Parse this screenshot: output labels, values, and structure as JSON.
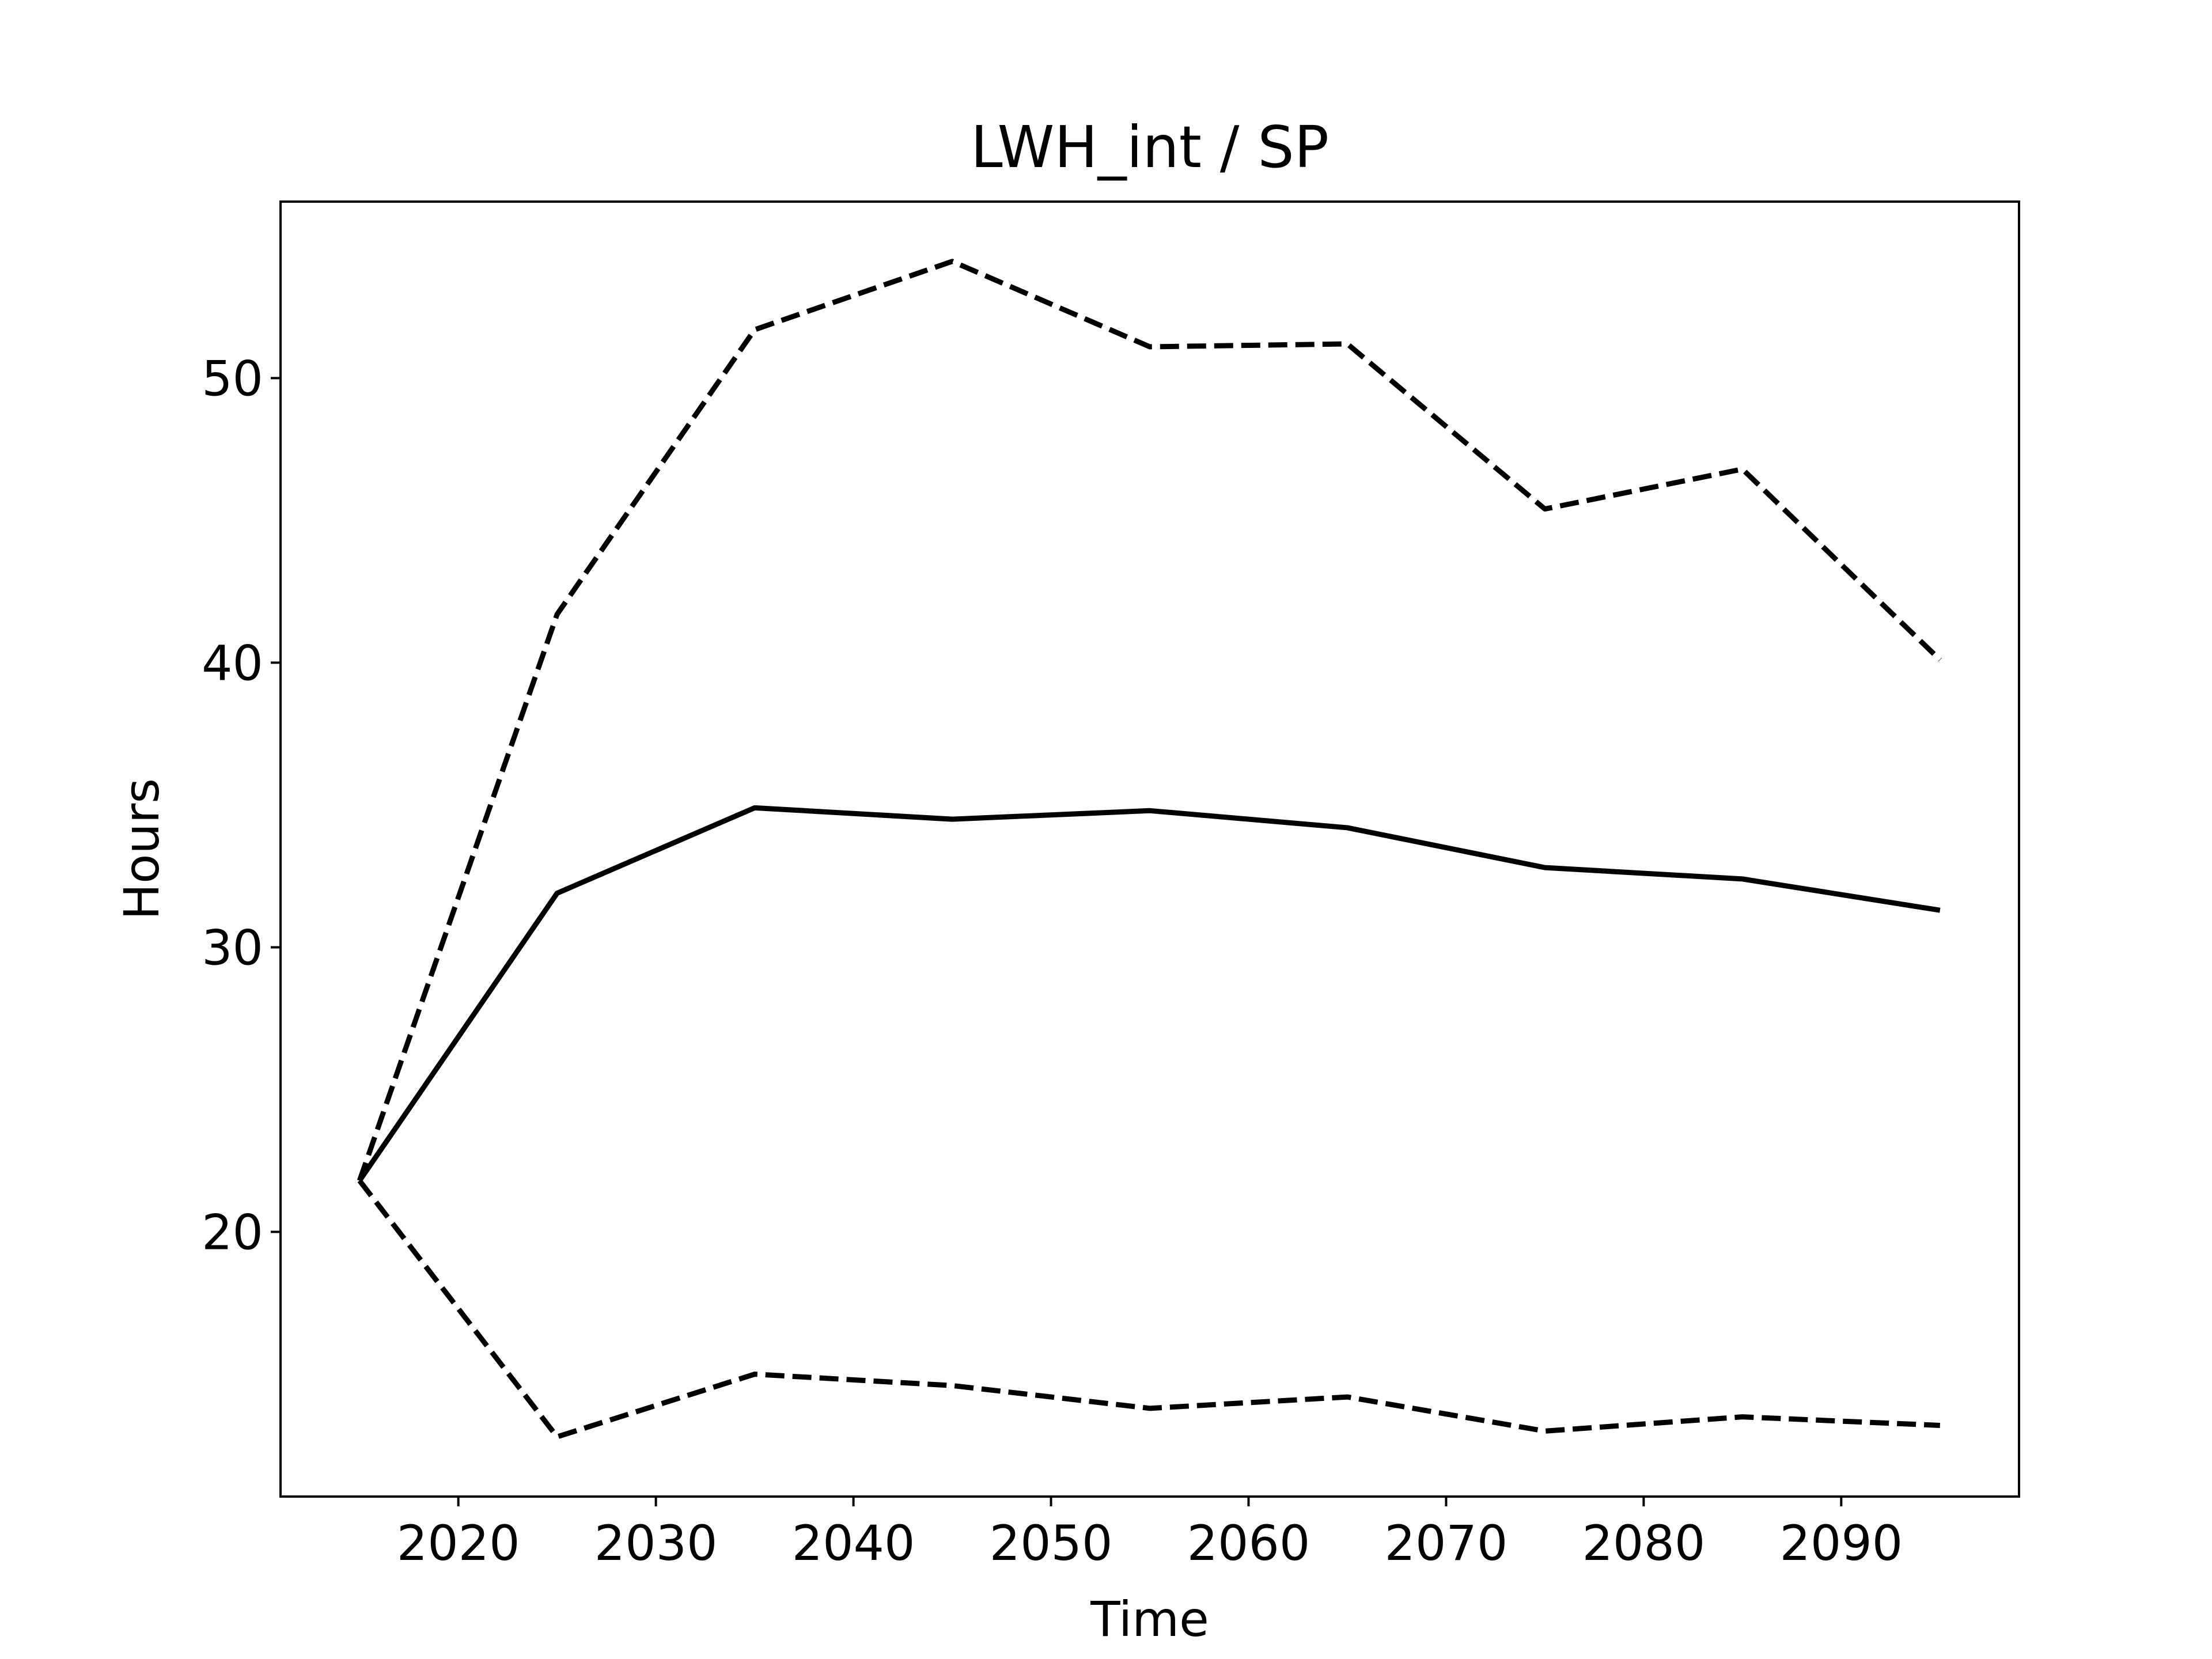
{
  "chart_data": {
    "type": "line",
    "title": "LWH_int / SP",
    "xlabel": "Time",
    "ylabel": "Hours",
    "x": [
      2015,
      2025,
      2035,
      2045,
      2055,
      2065,
      2075,
      2085,
      2095
    ],
    "series": [
      {
        "color": "#000000",
        "dashed": false,
        "values": [
          21.8,
          31.9,
          34.9,
          34.5,
          34.8,
          34.2,
          32.8,
          32.4,
          31.3
        ]
      },
      {
        "color": "#000000",
        "dashed": true,
        "values": [
          21.8,
          41.7,
          51.7,
          54.1,
          51.1,
          51.2,
          45.4,
          46.8,
          40.1
        ]
      },
      {
        "color": "#000000",
        "dashed": true,
        "values": [
          21.8,
          12.8,
          15.0,
          14.6,
          13.8,
          14.2,
          13.0,
          13.5,
          13.2
        ]
      }
    ],
    "xlim": [
      2011,
      2099
    ],
    "ylim": [
      10.7,
      56.2
    ],
    "xticks": [
      2020,
      2030,
      2040,
      2050,
      2060,
      2070,
      2080,
      2090
    ],
    "yticks": [
      20,
      30,
      40,
      50
    ],
    "grid": false
  }
}
